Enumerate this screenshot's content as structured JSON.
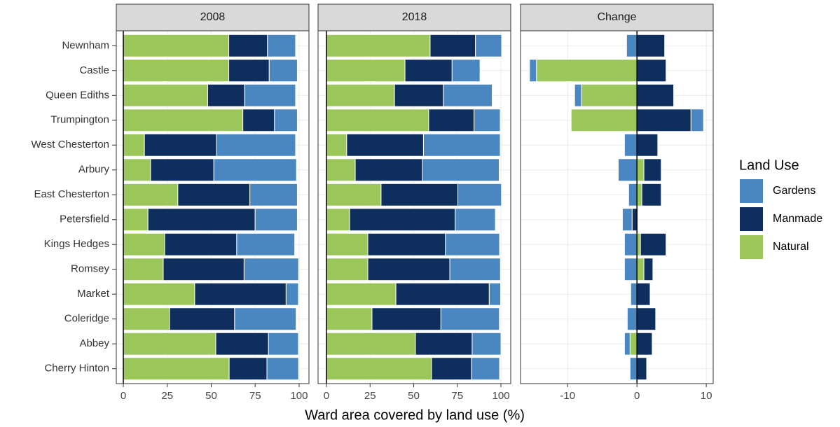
{
  "chart_data": {
    "type": "bar",
    "orientation": "horizontal",
    "stacked": true,
    "xlabel": "Ward area covered by land use (%)",
    "legend_title": "Land Use",
    "legend_position": "right",
    "grid": true,
    "categories": [
      "Newnham",
      "Castle",
      "Queen Ediths",
      "Trumpington",
      "West Chesterton",
      "Arbury",
      "East Chesterton",
      "Petersfield",
      "Kings Hedges",
      "Romsey",
      "Market",
      "Coleridge",
      "Abbey",
      "Cherry Hinton"
    ],
    "series": [
      {
        "name": "Gardens",
        "color": "#4a86c0"
      },
      {
        "name": "Manmade",
        "color": "#0e2f5e"
      },
      {
        "name": "Natural",
        "color": "#9bc65a"
      }
    ],
    "facets": [
      {
        "title": "2008",
        "xlim": [
          -4,
          105.6
        ],
        "xticks": [
          0,
          25,
          50,
          75,
          100
        ],
        "series": [
          {
            "values": [
              16,
              16,
              29,
              13,
              45,
              47,
              27,
              24,
              33,
              31,
              7,
              35,
              17,
              18
            ]
          },
          {
            "values": [
              22,
              23,
              21,
              18,
              41,
              36,
              41,
              61,
              41,
              46,
              52,
              37,
              30,
              21.5
            ]
          },
          {
            "values": [
              60,
              60,
              48,
              68,
              12,
              15.5,
              31,
              14,
              23.5,
              22.7,
              40.6,
              26.3,
              52.6,
              60.2
            ]
          }
        ]
      },
      {
        "title": "2018",
        "xlim": [
          -4.8,
          105.6
        ],
        "xticks": [
          0,
          25,
          50,
          75,
          100
        ],
        "series": [
          {
            "values": [
              15,
              16,
              28,
              15,
              44,
              44,
              25,
              23,
              31,
              29,
              6.5,
              33.5,
              16.5,
              16
            ]
          },
          {
            "values": [
              26,
              27,
              28,
              26,
              44,
              38.5,
              44,
              60.5,
              44.5,
              47,
              53.5,
              39.5,
              32.5,
              23
            ]
          },
          {
            "values": [
              59.4,
              45,
              39,
              58.6,
              11.6,
              16.5,
              31.3,
              13.3,
              23.7,
              23.7,
              39.8,
              26.1,
              51,
              60.2
            ]
          }
        ]
      },
      {
        "title": "Change",
        "xlim": [
          -16.8,
          11
        ],
        "xticks": [
          -10,
          0,
          10
        ],
        "series": [
          {
            "values": [
              -1.5,
              -1,
              -1,
              1.8,
              -1.8,
              -2.7,
              -1.2,
              -1.4,
              -1.8,
              -1.8,
              -0.9,
              -1.4,
              -0.8,
              -1
            ]
          },
          {
            "values": [
              4,
              4.2,
              5.3,
              7.8,
              3,
              2.5,
              2.8,
              -0.7,
              3.7,
              1.3,
              1.9,
              2.7,
              2.2,
              1.4
            ]
          },
          {
            "values": [
              0,
              -14.5,
              -8,
              -9.5,
              0,
              1,
              0.7,
              0,
              0.5,
              1,
              0,
              0,
              -1,
              0
            ]
          }
        ]
      }
    ]
  }
}
